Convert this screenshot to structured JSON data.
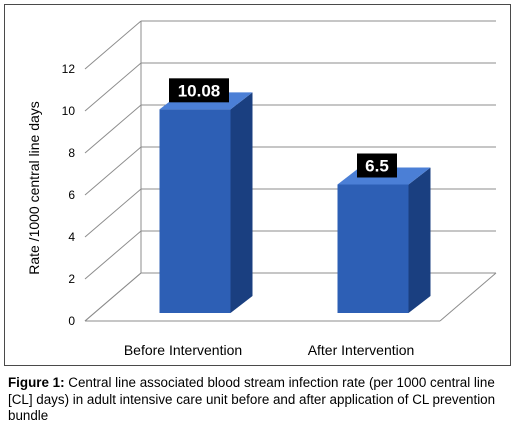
{
  "chart_data": {
    "type": "bar",
    "categories": [
      "Before Intervention",
      "After Intervention"
    ],
    "values": [
      10.08,
      6.5
    ],
    "data_labels": [
      "10.08",
      "6.5"
    ],
    "title": "",
    "xlabel": "",
    "ylabel": "Rate /1000 central line days",
    "ylim": [
      0,
      12
    ],
    "yticks": [
      "0",
      "2",
      "4",
      "6",
      "8",
      "10",
      "12"
    ],
    "grid": true,
    "style": "3d-bar",
    "colors": {
      "bar": "#2d5fb5",
      "bar_side": "#1a3f80",
      "bar_top": "#4b7fd6",
      "label_bg": "#000000"
    }
  },
  "caption": {
    "label": "Figure 1:",
    "text": " Central line associated blood stream infection rate (per 1000 central line [CL] days) in adult intensive care unit before and after application of CL prevention bundle"
  }
}
